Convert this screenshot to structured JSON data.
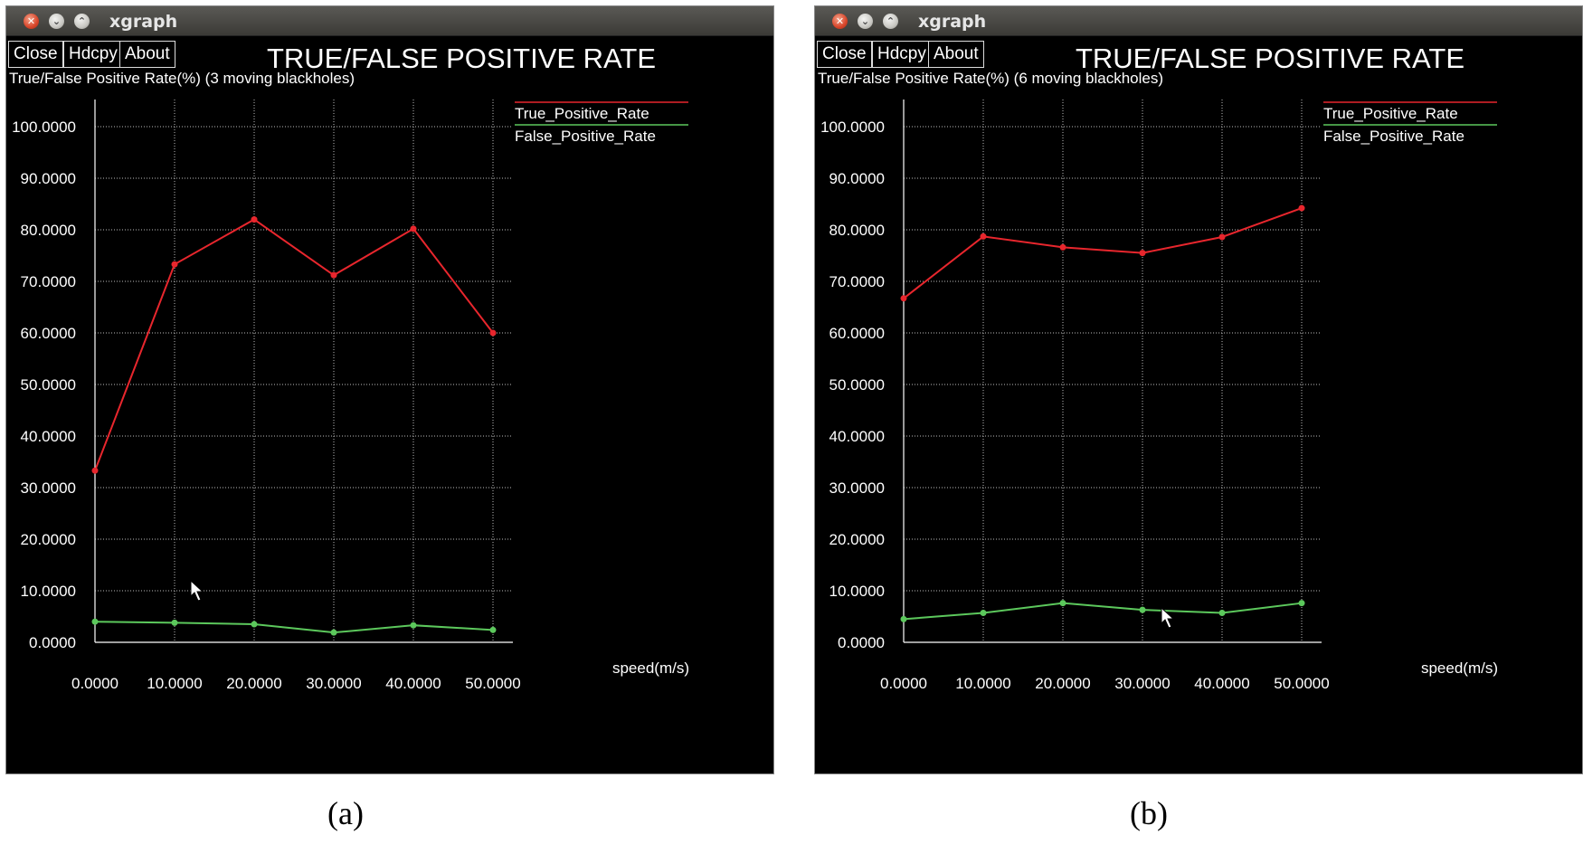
{
  "windows": [
    {
      "window_title": "xgraph",
      "buttons": [
        "Close",
        "Hdcpy",
        "About"
      ],
      "caption": "(a)",
      "chart_data": {
        "type": "line",
        "title": "TRUE/FALSE POSITIVE RATE",
        "ylabel": "True/False Positive Rate(%) (3 moving blackholes)",
        "xlabel": "speed(m/s)",
        "xlim": [
          0,
          50
        ],
        "ylim": [
          0,
          100
        ],
        "x_ticks": [
          "0.0000",
          "10.0000",
          "20.0000",
          "30.0000",
          "40.0000",
          "50.0000"
        ],
        "y_ticks": [
          "0.0000",
          "10.0000",
          "20.0000",
          "30.0000",
          "40.0000",
          "50.0000",
          "60.0000",
          "70.0000",
          "80.0000",
          "90.0000",
          "100.0000"
        ],
        "grid": true,
        "legend_position": "top-right",
        "x": [
          0,
          10,
          20,
          30,
          40,
          50
        ],
        "series": [
          {
            "name": "True_Positive_Rate",
            "color": "#e8262d",
            "values": [
              33.3,
              73.3,
              82.0,
              71.2,
              80.2,
              60.0
            ]
          },
          {
            "name": "False_Positive_Rate",
            "color": "#5cc85c",
            "values": [
              4.0,
              3.8,
              3.5,
              1.9,
              3.3,
              2.4
            ]
          }
        ]
      }
    },
    {
      "window_title": "xgraph",
      "buttons": [
        "Close",
        "Hdcpy",
        "About"
      ],
      "caption": "(b)",
      "chart_data": {
        "type": "line",
        "title": "TRUE/FALSE POSITIVE RATE",
        "ylabel": "True/False Positive Rate(%) (6 moving blackholes)",
        "xlabel": "speed(m/s)",
        "xlim": [
          0,
          50
        ],
        "ylim": [
          0,
          100
        ],
        "x_ticks": [
          "0.0000",
          "10.0000",
          "20.0000",
          "30.0000",
          "40.0000",
          "50.0000"
        ],
        "y_ticks": [
          "0.0000",
          "10.0000",
          "20.0000",
          "30.0000",
          "40.0000",
          "50.0000",
          "60.0000",
          "70.0000",
          "80.0000",
          "90.0000",
          "100.0000"
        ],
        "grid": true,
        "legend_position": "top-right",
        "x": [
          0,
          10,
          20,
          30,
          40,
          50
        ],
        "series": [
          {
            "name": "True_Positive_Rate",
            "color": "#e8262d",
            "values": [
              66.7,
              78.7,
              76.6,
              75.5,
              78.6,
              84.2
            ]
          },
          {
            "name": "False_Positive_Rate",
            "color": "#5cc85c",
            "values": [
              4.5,
              5.7,
              7.6,
              6.3,
              5.7,
              7.6
            ]
          }
        ]
      }
    }
  ]
}
